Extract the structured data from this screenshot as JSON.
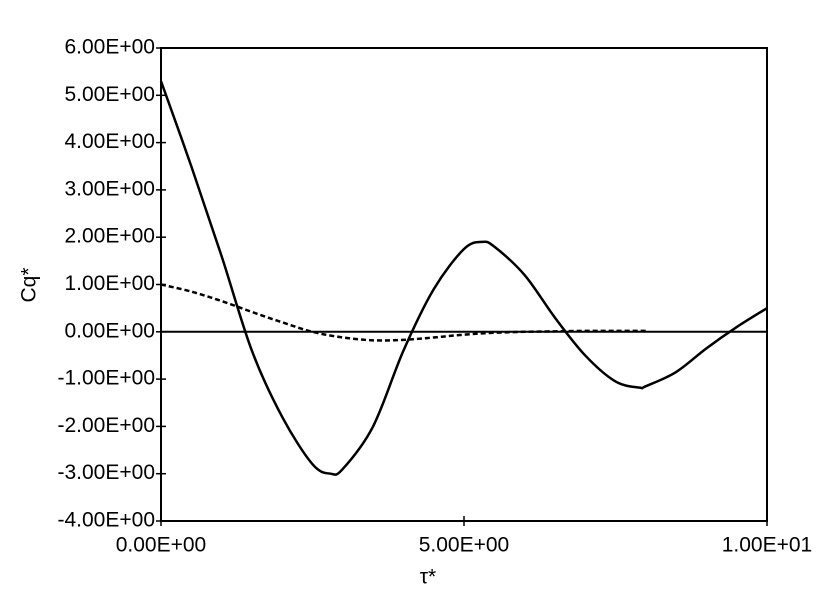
{
  "chart_data": {
    "type": "line",
    "x_label": "τ*",
    "y_label": "Cq*",
    "xlim": [
      0,
      10
    ],
    "ylim": [
      -4,
      6
    ],
    "xticks": [
      {
        "value": 0,
        "label": "0.00E+00"
      },
      {
        "value": 5,
        "label": "5.00E+00"
      },
      {
        "value": 10,
        "label": "1.00E+01"
      }
    ],
    "yticks": [
      {
        "value": -4,
        "label": "-4.00E+00"
      },
      {
        "value": -3,
        "label": "-3.00E+00"
      },
      {
        "value": -2,
        "label": "-2.00E+00"
      },
      {
        "value": -1,
        "label": "-1.00E+00"
      },
      {
        "value": 0,
        "label": "0.00E+00"
      },
      {
        "value": 1,
        "label": "1.00E+00"
      },
      {
        "value": 2,
        "label": "2.00E+00"
      },
      {
        "value": 3,
        "label": "3.00E+00"
      },
      {
        "value": 4,
        "label": "4.00E+00"
      },
      {
        "value": 5,
        "label": "5.00E+00"
      },
      {
        "value": 6,
        "label": "6.00E+00"
      }
    ],
    "reference_line": 0,
    "series": [
      {
        "color": "#000000",
        "dash": false,
        "x": [
          0,
          0.5,
          1,
          1.5,
          2,
          2.5,
          2.8,
          3,
          3.5,
          4,
          4.5,
          5,
          5.3,
          5.5,
          6,
          6.5,
          7,
          7.5,
          7.9,
          8,
          8.5,
          9,
          9.5,
          10
        ],
        "values": [
          5.3,
          3.5,
          1.6,
          -0.4,
          -1.8,
          -2.8,
          -3.0,
          -2.9,
          -2.0,
          -0.4,
          0.9,
          1.75,
          1.9,
          1.8,
          1.2,
          0.3,
          -0.5,
          -1.05,
          -1.18,
          -1.15,
          -0.85,
          -0.35,
          0.1,
          0.5
        ]
      },
      {
        "color": "#000000",
        "dash": true,
        "x": [
          0,
          0.5,
          1,
          1.5,
          2,
          2.5,
          3,
          3.5,
          4,
          4.5,
          5,
          5.5,
          6,
          6.5,
          7,
          7.5,
          8
        ],
        "values": [
          1.0,
          0.85,
          0.65,
          0.42,
          0.2,
          0.0,
          -0.12,
          -0.18,
          -0.17,
          -0.12,
          -0.06,
          -0.02,
          0,
          0.01,
          0.02,
          0.02,
          0.02
        ]
      }
    ]
  }
}
